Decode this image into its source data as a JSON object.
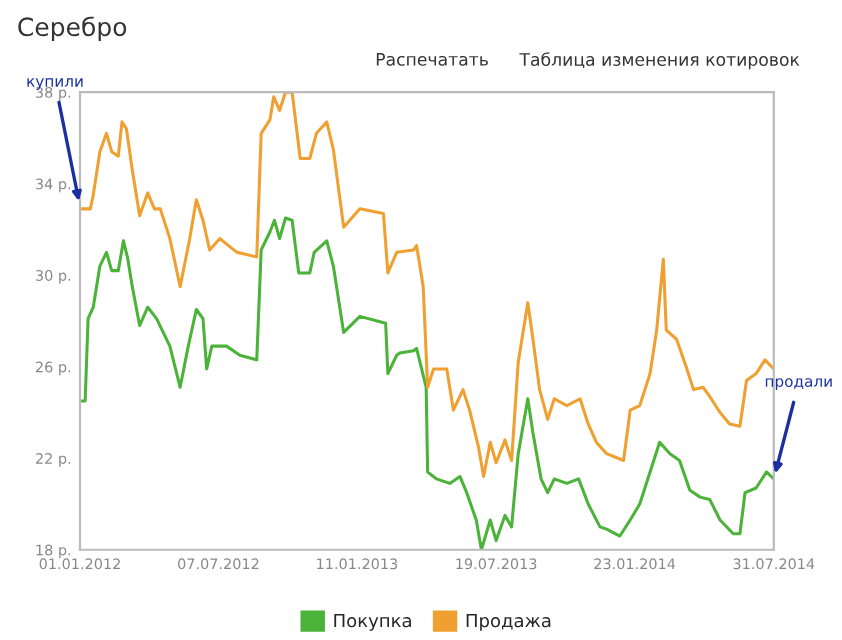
{
  "chart_data": {
    "type": "line",
    "title": "Серебро",
    "annotations": [
      "Распечатать",
      "Таблица изменения котировок",
      {
        "text": "купили",
        "x": "2012-01-01",
        "y": 33
      },
      {
        "text": "продали",
        "x": "2014-07-31",
        "y": 21.1
      }
    ],
    "xlim": [
      "2012-01-01",
      "2014-07-31"
    ],
    "xticks": [
      {
        "value": "2012-01-01",
        "label": "01.01.2012"
      },
      {
        "value": "2012-07-07",
        "label": "07.07.2012"
      },
      {
        "value": "2013-01-11",
        "label": "11.01.2013"
      },
      {
        "value": "2013-07-19",
        "label": "19.07.2013"
      },
      {
        "value": "2014-01-23",
        "label": "23.01.2014"
      },
      {
        "value": "2014-07-31",
        "label": "31.07.2014"
      }
    ],
    "ylim": [
      18,
      38
    ],
    "yticks": [
      {
        "value": 18,
        "label": "18 р."
      },
      {
        "value": 22,
        "label": "22 р."
      },
      {
        "value": 26,
        "label": "26 р."
      },
      {
        "value": 30,
        "label": "30 р."
      },
      {
        "value": 34,
        "label": "34 р."
      },
      {
        "value": 38,
        "label": "38 р."
      }
    ],
    "grid": false,
    "legend": "bottom",
    "marker": "none",
    "line_style": "solid",
    "series": [
      {
        "name": "Покупка",
        "color": "#4cb33a",
        "x": [
          "2012-01-01",
          "2012-01-08",
          "2012-01-12",
          "2012-01-19",
          "2012-01-28",
          "2012-02-06",
          "2012-02-13",
          "2012-02-22",
          "2012-02-29",
          "2012-03-06",
          "2012-03-12",
          "2012-03-22",
          "2012-04-02",
          "2012-04-14",
          "2012-05-02",
          "2012-05-16",
          "2012-05-27",
          "2012-06-07",
          "2012-06-16",
          "2012-06-21",
          "2012-06-28",
          "2012-07-18",
          "2012-08-05",
          "2012-08-28",
          "2012-09-03",
          "2012-09-15",
          "2012-09-21",
          "2012-09-28",
          "2012-10-06",
          "2012-10-15",
          "2012-10-24",
          "2012-11-08",
          "2012-11-14",
          "2012-12-01",
          "2012-12-10",
          "2012-12-24",
          "2013-01-15",
          "2013-02-19",
          "2013-02-22",
          "2013-03-06",
          "2013-03-10",
          "2013-03-29",
          "2013-04-02",
          "2013-04-15",
          "2013-04-17",
          "2013-04-29",
          "2013-05-17",
          "2013-05-31",
          "2013-06-09",
          "2013-06-22",
          "2013-06-29",
          "2013-07-11",
          "2013-07-19",
          "2013-07-31",
          "2013-08-09",
          "2013-08-18",
          "2013-08-31",
          "2013-09-07",
          "2013-09-18",
          "2013-09-27",
          "2013-10-06",
          "2013-10-23",
          "2013-11-08",
          "2013-11-21",
          "2013-12-07",
          "2013-12-16",
          "2014-01-03",
          "2014-01-17",
          "2014-01-30",
          "2014-02-13",
          "2014-02-26",
          "2014-03-12",
          "2014-03-25",
          "2014-04-08",
          "2014-04-22",
          "2014-05-05",
          "2014-05-19",
          "2014-06-06",
          "2014-06-15",
          "2014-06-22",
          "2014-07-07",
          "2014-07-21",
          "2014-07-31"
        ],
        "values": [
          24.5,
          24.5,
          28.1,
          28.6,
          30.4,
          31.0,
          30.2,
          30.2,
          31.5,
          30.7,
          29.5,
          27.8,
          28.6,
          28.1,
          26.9,
          25.1,
          26.9,
          28.5,
          28.1,
          25.9,
          26.9,
          26.9,
          26.5,
          26.3,
          31.1,
          31.9,
          32.4,
          31.6,
          32.5,
          32.4,
          30.1,
          30.1,
          31.0,
          31.5,
          30.4,
          27.5,
          28.2,
          27.9,
          25.7,
          26.5,
          26.6,
          26.7,
          26.8,
          25.1,
          21.4,
          21.1,
          20.9,
          21.2,
          20.5,
          19.3,
          18.0,
          19.3,
          18.4,
          19.5,
          19.0,
          22.2,
          24.6,
          23.1,
          21.1,
          20.5,
          21.1,
          20.9,
          21.1,
          20.0,
          19.0,
          18.9,
          18.6,
          19.3,
          20.0,
          21.4,
          22.7,
          22.2,
          21.9,
          20.6,
          20.3,
          20.2,
          19.3,
          18.7,
          18.7,
          20.5,
          20.7,
          21.4,
          21.1
        ]
      },
      {
        "name": "Продажа",
        "color": "#f0a030",
        "x": [
          "2012-01-01",
          "2012-01-15",
          "2012-01-19",
          "2012-01-28",
          "2012-02-06",
          "2012-02-13",
          "2012-02-22",
          "2012-02-27",
          "2012-03-04",
          "2012-03-12",
          "2012-03-22",
          "2012-04-02",
          "2012-04-11",
          "2012-04-19",
          "2012-05-02",
          "2012-05-16",
          "2012-05-29",
          "2012-06-07",
          "2012-06-16",
          "2012-06-25",
          "2012-07-09",
          "2012-08-01",
          "2012-08-28",
          "2012-09-03",
          "2012-09-15",
          "2012-09-20",
          "2012-09-28",
          "2012-10-06",
          "2012-10-15",
          "2012-10-26",
          "2012-11-08",
          "2012-11-17",
          "2012-12-01",
          "2012-12-10",
          "2012-12-24",
          "2013-01-15",
          "2013-02-16",
          "2013-02-22",
          "2013-03-06",
          "2013-03-29",
          "2013-04-02",
          "2013-04-11",
          "2013-04-17",
          "2013-04-25",
          "2013-05-13",
          "2013-05-22",
          "2013-06-04",
          "2013-06-13",
          "2013-06-25",
          "2013-07-02",
          "2013-07-11",
          "2013-07-19",
          "2013-07-31",
          "2013-08-09",
          "2013-08-18",
          "2013-08-31",
          "2013-09-07",
          "2013-09-16",
          "2013-09-27",
          "2013-10-06",
          "2013-10-23",
          "2013-11-10",
          "2013-11-21",
          "2013-12-02",
          "2013-12-16",
          "2014-01-08",
          "2014-01-17",
          "2014-01-30",
          "2014-02-13",
          "2014-02-22",
          "2014-03-03",
          "2014-03-07",
          "2014-03-21",
          "2014-04-03",
          "2014-04-13",
          "2014-04-26",
          "2014-05-05",
          "2014-05-19",
          "2014-06-01",
          "2014-06-15",
          "2014-06-24",
          "2014-07-07",
          "2014-07-19",
          "2014-07-31"
        ],
        "values": [
          32.9,
          32.9,
          33.5,
          35.4,
          36.2,
          35.4,
          35.2,
          36.7,
          36.4,
          34.6,
          32.6,
          33.6,
          32.9,
          32.9,
          31.6,
          29.5,
          31.6,
          33.3,
          32.4,
          31.1,
          31.6,
          31.0,
          30.8,
          36.2,
          36.8,
          37.8,
          37.2,
          38.0,
          38.0,
          35.1,
          35.1,
          36.2,
          36.7,
          35.5,
          32.1,
          32.9,
          32.7,
          30.1,
          31.0,
          31.1,
          31.3,
          29.5,
          25.1,
          25.9,
          25.9,
          24.1,
          25.0,
          24.1,
          22.5,
          21.2,
          22.7,
          21.8,
          22.8,
          21.9,
          26.2,
          28.8,
          27.2,
          25.0,
          23.7,
          24.6,
          24.3,
          24.6,
          23.5,
          22.7,
          22.2,
          21.9,
          24.1,
          24.3,
          25.7,
          27.6,
          30.7,
          27.6,
          27.2,
          26.0,
          25.0,
          25.1,
          24.7,
          24.0,
          23.5,
          23.4,
          25.4,
          25.7,
          26.3,
          25.9
        ]
      }
    ]
  }
}
